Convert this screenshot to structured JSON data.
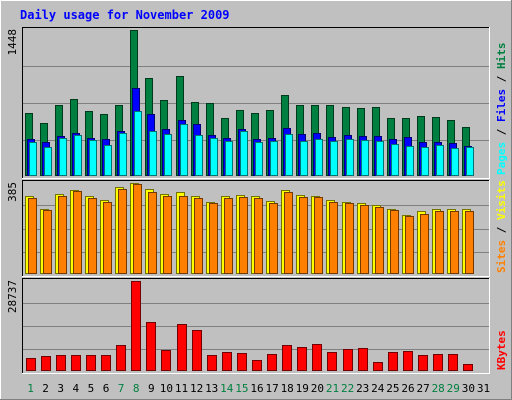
{
  "chart_data": {
    "type": "bar",
    "title": "Daily usage for November 2009",
    "days": [
      "1",
      "2",
      "3",
      "4",
      "5",
      "6",
      "7",
      "8",
      "9",
      "10",
      "11",
      "12",
      "13",
      "14",
      "15",
      "16",
      "17",
      "18",
      "19",
      "20",
      "21",
      "22",
      "23",
      "24",
      "25",
      "26",
      "27",
      "28",
      "29",
      "30",
      "31"
    ],
    "weekend_days": [
      "1",
      "7",
      "8",
      "14",
      "15",
      "21",
      "22",
      "28",
      "29"
    ],
    "panels": [
      {
        "id": "hits",
        "max_label": "1448",
        "ymax": 1448,
        "legend": [
          "Pages",
          "Files",
          "Hits"
        ],
        "series": [
          {
            "name": "Hits",
            "color": "#008040",
            "values": [
              620,
              530,
              700,
              760,
              640,
              610,
              700,
              1448,
              970,
              750,
              990,
              730,
              720,
              580,
              650,
              620,
              650,
              800,
              700,
              700,
              700,
              680,
              670,
              680,
              580,
              580,
              600,
              590,
              560,
              490,
              0
            ]
          },
          {
            "name": "Files",
            "color": "#0000ff",
            "values": [
              370,
              340,
              400,
              430,
              380,
              370,
              450,
              870,
              610,
              470,
              560,
              520,
              410,
              380,
              470,
              370,
              380,
              480,
              420,
              430,
              390,
              410,
              400,
              400,
              370,
              390,
              340,
              340,
              330,
              300,
              0
            ]
          },
          {
            "name": "Pages",
            "color": "#00ffff",
            "values": [
              340,
              290,
              380,
              410,
              360,
              310,
              430,
              640,
              450,
              420,
              520,
              410,
              380,
              350,
              450,
              340,
              350,
              420,
              350,
              370,
              350,
              370,
              360,
              350,
              320,
              300,
              290,
              310,
              280,
              290,
              0
            ]
          }
        ]
      },
      {
        "id": "visits",
        "max_label": "385",
        "ymax": 385,
        "legend": [
          "Sites",
          "Visits"
        ],
        "series": [
          {
            "name": "Visits",
            "color": "#ffff00",
            "values": [
              330,
              275,
              340,
              355,
              330,
              315,
              370,
              385,
              360,
              340,
              345,
              330,
              305,
              330,
              335,
              330,
              310,
              355,
              335,
              330,
              315,
              305,
              300,
              290,
              275,
              250,
              265,
              275,
              275,
              275,
              0
            ]
          },
          {
            "name": "Sites",
            "color": "#ff8000",
            "values": [
              320,
              270,
              330,
              350,
              320,
              305,
              360,
              380,
              345,
              330,
              330,
              320,
              300,
              320,
              325,
              320,
              300,
              345,
              325,
              325,
              305,
              300,
              290,
              285,
              270,
              245,
              255,
              265,
              265,
              265,
              0
            ]
          }
        ]
      },
      {
        "id": "kbytes",
        "max_label": "28737",
        "ymax": 28737,
        "legend": [
          "KBytes"
        ],
        "series": [
          {
            "name": "KBytes",
            "color": "#ff0000",
            "values": [
              4200,
              4800,
              5100,
              5100,
              5100,
              5200,
              8300,
              28737,
              15600,
              6800,
              15000,
              13200,
              5200,
              6000,
              5800,
              3500,
              5400,
              8300,
              7700,
              8600,
              6000,
              7000,
              7500,
              2800,
              6200,
              6500,
              5200,
              5300,
              5300,
              2300,
              0
            ]
          }
        ]
      }
    ]
  }
}
